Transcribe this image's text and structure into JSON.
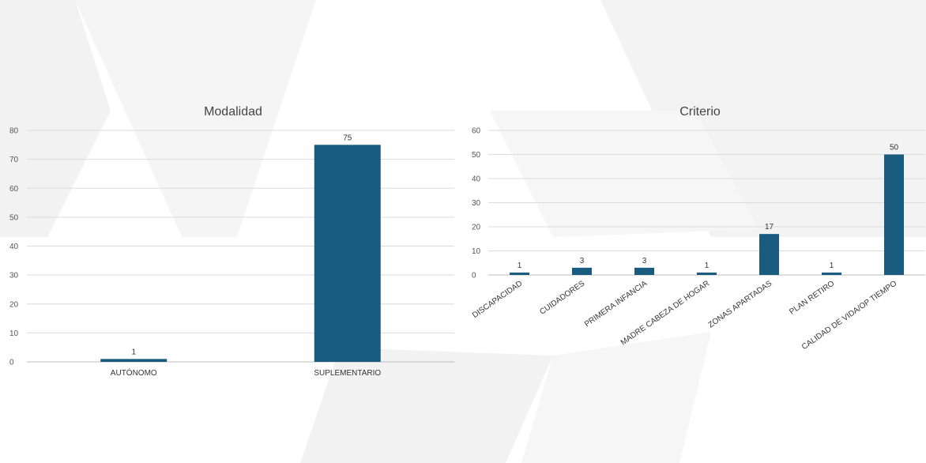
{
  "chart_data": [
    {
      "type": "bar",
      "title": "Modalidad",
      "categories": [
        "AUTÓNOMO",
        "SUPLEMENTARIO"
      ],
      "values": [
        1,
        75
      ],
      "ylim": [
        0,
        80
      ],
      "yticks": [
        0,
        10,
        20,
        30,
        40,
        50,
        60,
        70,
        80
      ],
      "grid": true,
      "legend": "none",
      "bar_color": "#1a5c80"
    },
    {
      "type": "bar",
      "title": "Criterio",
      "categories": [
        "DISCAPACIDAD",
        "CUIDADORES",
        "PRIMERA INFANCIA",
        "MADRE CABEZA DE HOGAR",
        "ZONAS APARTADAS",
        "PLAN RETIRO",
        "CALIDAD DE VIDA/OP TIEMPO"
      ],
      "values": [
        1,
        3,
        3,
        1,
        17,
        1,
        50
      ],
      "ylim": [
        0,
        60
      ],
      "yticks": [
        0,
        10,
        20,
        30,
        40,
        50,
        60
      ],
      "grid": true,
      "legend": "none",
      "bar_color": "#1a5c80"
    }
  ]
}
